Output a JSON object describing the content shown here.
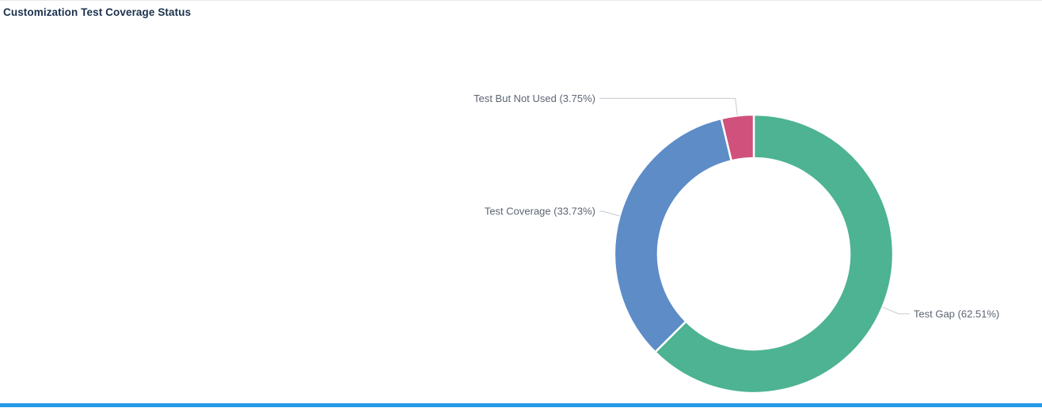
{
  "page": {
    "title": "Customization Test Coverage Status"
  },
  "chart_data": {
    "type": "pie",
    "subtype": "donut",
    "title": "Customization Test Coverage Status",
    "legend": "none",
    "label_format": "{name} ({percent}%)",
    "direction": "clockwise",
    "start_angle_deg": 0,
    "segments": [
      {
        "name": "Test Gap",
        "percent": 62.51,
        "label": "Test Gap (62.51%)",
        "color": "#4db392"
      },
      {
        "name": "Test Coverage",
        "percent": 33.73,
        "label": "Test Coverage (33.73%)",
        "color": "#5d8cc7"
      },
      {
        "name": "Test But Not Used",
        "percent": 3.75,
        "label": "Test But Not Used (3.75%)",
        "color": "#d0517c"
      }
    ]
  },
  "colors": {
    "title_text": "#1b314c",
    "label_text": "#5d6673",
    "label_line": "#c6cad0",
    "bottom_bar": "#2599e8",
    "slice_border": "#ffffff"
  }
}
